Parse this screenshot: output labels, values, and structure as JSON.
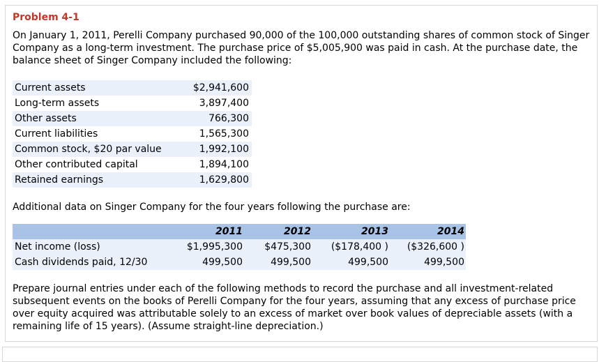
{
  "title": "Problem 4-1",
  "intro": "On January 1, 2011, Perelli Company purchased 90,000 of the 100,000 outstanding shares of common stock of Singer Company as a long-term investment. The purchase price of $5,005,900 was paid in cash. At the purchase date, the balance sheet of Singer Company included the following:",
  "balance_sheet": [
    {
      "label": "Current assets",
      "value": "$2,941,600"
    },
    {
      "label": "Long-term assets",
      "value": "3,897,400"
    },
    {
      "label": "Other assets",
      "value": "766,300"
    },
    {
      "label": "Current liabilities",
      "value": "1,565,300"
    },
    {
      "label": "Common stock, $20 par value",
      "value": "1,992,100"
    },
    {
      "label": "Other contributed capital",
      "value": "1,894,100"
    },
    {
      "label": "Retained earnings",
      "value": "1,629,800"
    }
  ],
  "additional_text": "Additional data on Singer Company for the four years following the purchase are:",
  "years": [
    "2011",
    "2012",
    "2013",
    "2014"
  ],
  "rows": [
    {
      "label": "Net income (loss)",
      "values": [
        "$1,995,300",
        "$475,300",
        "($178,400 )",
        "($326,600 )"
      ]
    },
    {
      "label": "Cash dividends paid, 12/30",
      "values": [
        "499,500",
        "499,500",
        "499,500",
        "499,500"
      ]
    }
  ],
  "instructions": "Prepare journal entries under each of the following methods to record the purchase and all investment-related subsequent events on the books of Perelli Company for the four years, assuming that any excess of purchase price over equity acquired was attributable solely to an excess of market over book values of depreciable assets (with a remaining life of 15 years). (Assume straight-line depreciation.)"
}
